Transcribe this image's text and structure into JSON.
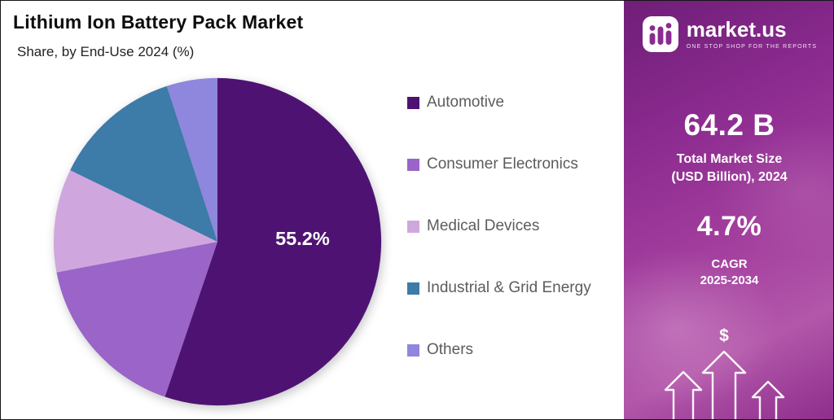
{
  "header": {
    "title": "Lithium Ion Battery Pack Market",
    "subtitle": "Share, by End-Use 2024 (%)"
  },
  "chart_data": {
    "type": "pie",
    "title": "Lithium Ion Battery Pack Market",
    "subtitle": "Share, by End-Use 2024 (%)",
    "categories": [
      "Automotive",
      "Consumer Electronics",
      "Medical Devices",
      "Industrial & Grid Energy",
      "Others"
    ],
    "values": [
      55.2,
      16.8,
      10.2,
      12.8,
      5.0
    ],
    "colors": [
      "#4e1372",
      "#9a64c8",
      "#cfa7de",
      "#3d7ba8",
      "#8f86dd"
    ],
    "slice_labels": [
      {
        "index": 0,
        "text": "55.2%",
        "angle_deg": 88,
        "r_frac": 0.52
      }
    ],
    "start_angle_deg": 0,
    "direction": "clockwise",
    "legend_position": "right",
    "label_color": "#ffffff"
  },
  "panel": {
    "accent_color": "#8a2b8f",
    "brand": {
      "name": "market.us",
      "tagline": "ONE STOP SHOP FOR THE REPORTS"
    },
    "market_size": {
      "value": "64.2 B",
      "label_line1": "Total Market Size",
      "label_line2": "(USD Billion), 2024"
    },
    "cagr": {
      "value": "4.7%",
      "label_line1": "CAGR",
      "label_line2": "2025-2034"
    },
    "currency_symbol": "$",
    "icons": {
      "brand_icon": "bar-chart-logo",
      "growth_icon": "three-up-arrows"
    }
  }
}
